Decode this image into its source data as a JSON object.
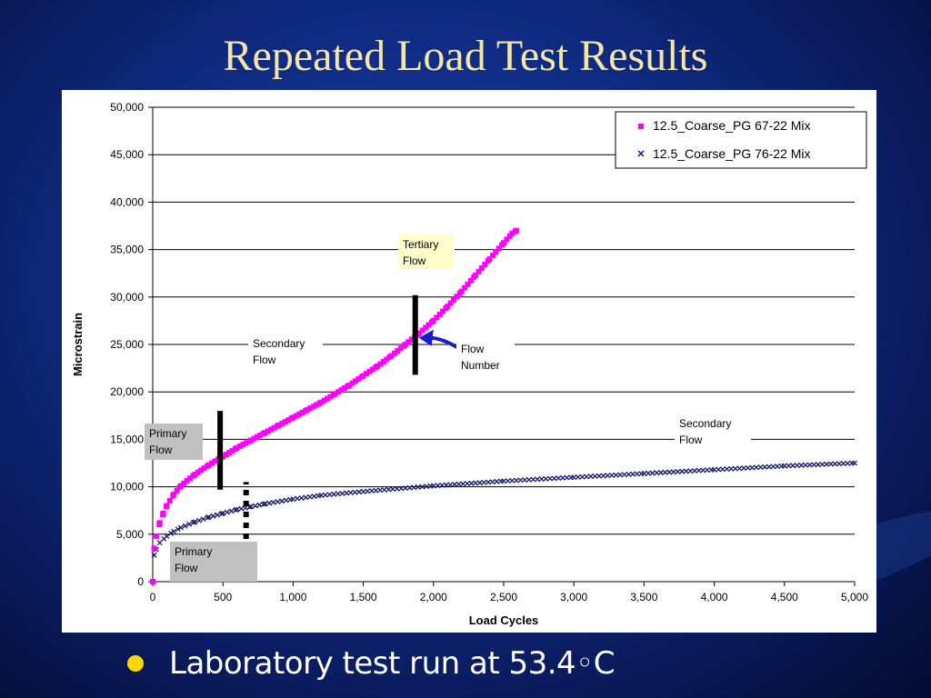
{
  "slide": {
    "title": "Repeated Load Test Results",
    "bullet": "Laboratory test run at 53.4◦C"
  },
  "colors": {
    "series_pink": "#ff00ff",
    "series_navy": "#1a1a6e",
    "flow_arrow": "#1a1ad0",
    "gray_box": "#c0c0c0",
    "yellow_box": "#ffffcc",
    "bullet_dot": "#ffd700",
    "title_color": "#f5e6a8"
  },
  "chart_data": {
    "type": "scatter",
    "xlabel": "Load Cycles",
    "ylabel": "Microstrain",
    "xlim": [
      0,
      5000
    ],
    "ylim": [
      0,
      50000
    ],
    "x_ticks": [
      "0",
      "500",
      "1,000",
      "1,500",
      "2,000",
      "2,500",
      "3,000",
      "3,500",
      "4,000",
      "4,500",
      "5,000"
    ],
    "y_ticks": [
      "0",
      "5,000",
      "10,000",
      "15,000",
      "20,000",
      "25,000",
      "30,000",
      "35,000",
      "40,000",
      "45,000",
      "50,000"
    ],
    "grid": "horizontal",
    "legend_position": "top-right",
    "series": [
      {
        "name": "12.5_Coarse_PG 67-22 Mix",
        "marker": "square",
        "color": "#ff00ff",
        "x": [
          0,
          10,
          25,
          50,
          75,
          100,
          150,
          200,
          300,
          400,
          500,
          600,
          700,
          800,
          900,
          1000,
          1100,
          1200,
          1300,
          1400,
          1500,
          1600,
          1700,
          1800,
          1900,
          2000,
          2100,
          2200,
          2300,
          2400,
          2500,
          2560,
          2590
        ],
        "y": [
          0,
          3500,
          4800,
          6200,
          7200,
          8000,
          9200,
          10100,
          11300,
          12300,
          13200,
          14100,
          14900,
          15700,
          16500,
          17300,
          18100,
          18900,
          19800,
          20700,
          21700,
          22700,
          23800,
          25000,
          26200,
          27500,
          29000,
          30600,
          32300,
          34000,
          35700,
          36700,
          37000
        ]
      },
      {
        "name": "12.5_Coarse_PG 76-22 Mix",
        "marker": "x",
        "color": "#1a1a6e",
        "x": [
          0,
          10,
          25,
          50,
          100,
          150,
          200,
          300,
          400,
          500,
          600,
          700,
          800,
          1000,
          1200,
          1500,
          2000,
          2500,
          3000,
          3500,
          4000,
          4500,
          5000
        ],
        "y": [
          0,
          2800,
          3400,
          4100,
          4800,
          5300,
          5700,
          6300,
          6800,
          7200,
          7600,
          7900,
          8200,
          8700,
          9100,
          9500,
          10100,
          10600,
          11000,
          11400,
          11800,
          12200,
          12500
        ]
      }
    ],
    "annotations": [
      {
        "id": "tertiary",
        "text": [
          "Tertiary",
          "Flow"
        ],
        "style": "yellow"
      },
      {
        "id": "secondary-top",
        "text": [
          "Secondary",
          "Flow"
        ],
        "style": "plain"
      },
      {
        "id": "flow-number",
        "text": [
          "Flow",
          "Number"
        ],
        "style": "plain"
      },
      {
        "id": "secondary-bottom",
        "text": [
          "Secondary",
          "Flow"
        ],
        "style": "plain"
      },
      {
        "id": "primary-top",
        "text": [
          "Primary",
          "Flow"
        ],
        "style": "gray"
      },
      {
        "id": "primary-bottom",
        "text": [
          "Primary",
          "Flow"
        ],
        "style": "gray"
      }
    ],
    "markers": [
      {
        "id": "primary-end-pink",
        "x": 480,
        "y_range": [
          9700,
          18000
        ],
        "style": "solid"
      },
      {
        "id": "flow-number-line",
        "x": 1870,
        "y_range": [
          21800,
          30200
        ],
        "style": "solid"
      },
      {
        "id": "primary-end-navy",
        "x": 665,
        "y_range": [
          4500,
          10500
        ],
        "style": "dashed"
      }
    ],
    "flow_number_point": {
      "x": 1870,
      "y": 25500
    }
  }
}
